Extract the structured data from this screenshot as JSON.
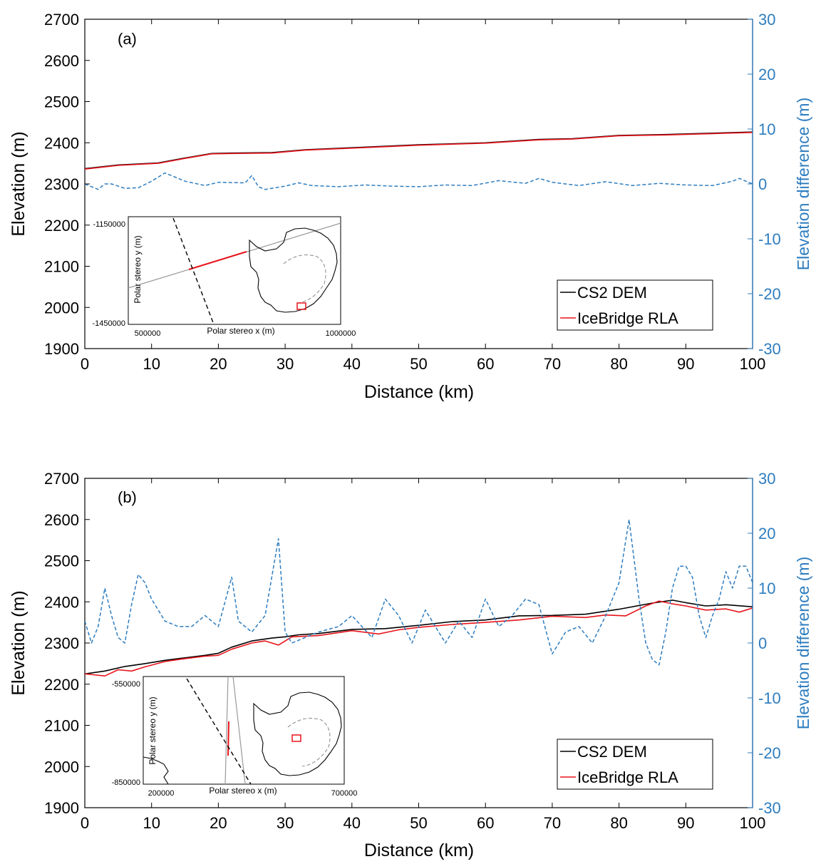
{
  "colors": {
    "dem": "#000000",
    "rla": "#e8141b",
    "diff": "#2e7dbf",
    "inset_track": "#9a9a9a",
    "inset_dash": "#000000",
    "inset_box": "#e8141b"
  },
  "chart_data": [
    {
      "type": "line",
      "panel_label": "(a)",
      "xlabel": "Distance (km)",
      "ylabel": "Elevation (m)",
      "y2label": "Elevation difference (m)",
      "xlim": [
        0,
        100
      ],
      "ylim": [
        1900,
        2700
      ],
      "y2lim": [
        -30,
        30
      ],
      "xticks": [
        "0",
        "10",
        "20",
        "30",
        "40",
        "50",
        "60",
        "70",
        "80",
        "90",
        "100"
      ],
      "yticks": [
        "1900",
        "2000",
        "2100",
        "2200",
        "2300",
        "2400",
        "2500",
        "2600",
        "2700"
      ],
      "y2ticks": [
        "-30",
        "-20",
        "-10",
        "0",
        "10",
        "20",
        "30"
      ],
      "legend": [
        "CS2 DEM",
        "IceBridge RLA"
      ],
      "legend_position": "bottom-right",
      "series": [
        {
          "name": "CS2 DEM",
          "axis": "left",
          "style": "solid",
          "x": [
            0,
            5,
            11,
            15,
            19,
            22,
            28,
            33,
            40,
            50,
            60,
            68,
            73,
            80,
            87,
            100
          ],
          "y": [
            2337,
            2346,
            2351,
            2363,
            2374,
            2375,
            2376,
            2383,
            2388,
            2395,
            2400,
            2408,
            2410,
            2418,
            2420,
            2426
          ]
        },
        {
          "name": "IceBridge RLA",
          "axis": "left",
          "style": "solid",
          "x": [
            0,
            5,
            11,
            15,
            19,
            22,
            28,
            33,
            40,
            50,
            60,
            68,
            73,
            80,
            87,
            100
          ],
          "y": [
            2336,
            2345,
            2350,
            2362,
            2373,
            2374,
            2375,
            2382,
            2387,
            2394,
            2399,
            2407,
            2409,
            2417,
            2419,
            2425
          ]
        },
        {
          "name": "Elevation difference",
          "axis": "right",
          "style": "dashed",
          "x": [
            0,
            1,
            2,
            3,
            4,
            6,
            8,
            10,
            12,
            13,
            15,
            18,
            20,
            24,
            25,
            26,
            27,
            30,
            32,
            34,
            38,
            42,
            46,
            50,
            54,
            58,
            62,
            66,
            68,
            70,
            74,
            78,
            82,
            86,
            90,
            94,
            97,
            98,
            100
          ],
          "y": [
            0,
            -0.5,
            -1,
            0,
            0,
            -0.8,
            -0.7,
            0.5,
            2,
            1.5,
            0.5,
            -0.3,
            0.3,
            0.2,
            1.5,
            -0.5,
            -1,
            -0.4,
            0.2,
            -0.3,
            -0.5,
            -0.2,
            -0.4,
            -0.5,
            -0.2,
            -0.3,
            0.6,
            0.1,
            1,
            0.3,
            -0.3,
            0.4,
            -0.3,
            0.1,
            -0.2,
            -0.3,
            0.5,
            1,
            0
          ]
        }
      ],
      "inset": {
        "xlabel": "Polar stereo x (m)",
        "ylabel": "Polar stereo y (m)",
        "xticks": [
          "500000",
          "1000000"
        ],
        "yticks": [
          "-1150000",
          "-1450000"
        ]
      }
    },
    {
      "type": "line",
      "panel_label": "(b)",
      "xlabel": "Distance (km)",
      "ylabel": "Elevation (m)",
      "y2label": "Elevation difference (m)",
      "xlim": [
        0,
        100
      ],
      "ylim": [
        1900,
        2700
      ],
      "y2lim": [
        -30,
        30
      ],
      "xticks": [
        "0",
        "10",
        "20",
        "30",
        "40",
        "50",
        "60",
        "70",
        "80",
        "90",
        "100"
      ],
      "yticks": [
        "1900",
        "2000",
        "2100",
        "2200",
        "2300",
        "2400",
        "2500",
        "2600",
        "2700"
      ],
      "y2ticks": [
        "-30",
        "-20",
        "-10",
        "0",
        "10",
        "20",
        "30"
      ],
      "legend": [
        "CS2 DEM",
        "IceBridge RLA"
      ],
      "legend_position": "bottom-right",
      "series": [
        {
          "name": "CS2 DEM",
          "axis": "left",
          "style": "solid",
          "x": [
            0,
            3,
            6,
            9,
            12,
            15,
            18,
            20,
            22,
            25,
            28,
            30,
            32,
            35,
            40,
            45,
            50,
            55,
            60,
            65,
            70,
            75,
            80,
            85,
            88,
            90,
            93,
            96,
            100
          ],
          "y": [
            2225,
            2232,
            2243,
            2250,
            2258,
            2264,
            2270,
            2275,
            2290,
            2305,
            2312,
            2315,
            2320,
            2323,
            2333,
            2335,
            2343,
            2352,
            2356,
            2366,
            2367,
            2370,
            2382,
            2397,
            2404,
            2398,
            2390,
            2393,
            2388
          ]
        },
        {
          "name": "IceBridge RLA",
          "axis": "left",
          "style": "solid",
          "x": [
            0,
            3,
            5,
            7,
            9,
            12,
            15,
            18,
            20,
            22,
            25,
            27,
            29,
            31,
            35,
            40,
            44,
            47,
            50,
            55,
            60,
            65,
            70,
            75,
            78,
            81,
            84,
            86,
            88,
            90,
            93,
            96,
            98,
            100
          ],
          "y": [
            2225,
            2220,
            2235,
            2232,
            2242,
            2255,
            2262,
            2268,
            2270,
            2285,
            2300,
            2305,
            2295,
            2315,
            2318,
            2330,
            2322,
            2332,
            2338,
            2345,
            2350,
            2356,
            2365,
            2362,
            2368,
            2366,
            2390,
            2402,
            2395,
            2390,
            2380,
            2383,
            2375,
            2385
          ]
        },
        {
          "name": "Elevation difference",
          "axis": "right",
          "style": "dashed",
          "x": [
            0,
            1,
            2,
            3,
            4,
            5,
            6,
            7,
            8,
            9,
            10,
            12,
            14,
            16,
            18,
            20,
            22,
            23,
            25,
            27,
            29,
            30,
            31,
            33,
            35,
            38,
            40,
            43,
            45,
            47,
            49,
            51,
            53,
            54,
            56,
            58,
            60,
            62,
            64,
            66,
            68,
            70,
            72,
            74,
            76,
            78,
            80,
            81.5,
            83,
            84,
            85,
            86,
            87,
            88,
            89,
            90,
            91,
            92,
            93,
            94,
            95,
            96,
            97,
            98,
            99,
            100
          ],
          "y": [
            4,
            0,
            3,
            10,
            5,
            1,
            0,
            7,
            12.5,
            11,
            8,
            4,
            3,
            3,
            5,
            3,
            12,
            4,
            2,
            5,
            19,
            2,
            0,
            1,
            2,
            3,
            5,
            1,
            8,
            5,
            0,
            6,
            2,
            0,
            4,
            1,
            8,
            3,
            5,
            8,
            7,
            -2,
            2,
            3,
            0,
            5,
            11,
            22.5,
            8,
            0,
            -3,
            -4,
            2,
            10,
            14,
            14,
            12,
            5,
            1,
            5,
            8,
            13,
            10,
            14,
            14,
            11
          ]
        }
      ],
      "inset": {
        "xlabel": "Polar stereo x (m)",
        "ylabel": "Polar stereo y (m)",
        "xticks": [
          "200000",
          "700000"
        ],
        "yticks": [
          "-550000",
          "-850000"
        ]
      }
    }
  ]
}
